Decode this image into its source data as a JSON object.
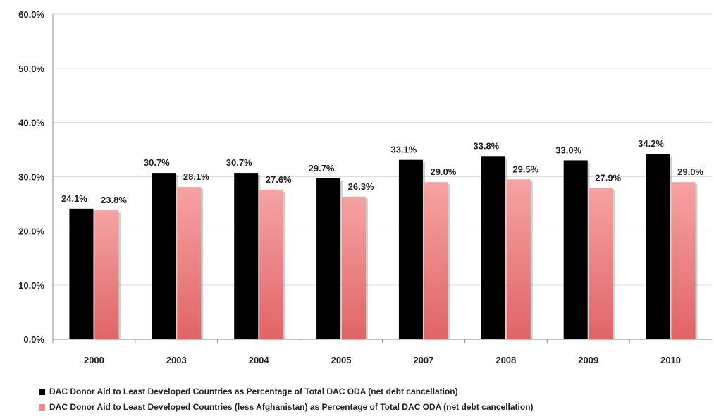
{
  "chart_data": {
    "type": "bar",
    "categories": [
      "2000",
      "2003",
      "2004",
      "2005",
      "2007",
      "2008",
      "2009",
      "2010"
    ],
    "series": [
      {
        "name": "DAC Donor Aid to Least Developed Countries as Percentage of Total DAC ODA (net debt cancellation)",
        "values": [
          24.1,
          30.7,
          30.7,
          29.7,
          33.1,
          33.8,
          33.0,
          34.2
        ],
        "labels": [
          "24.1%",
          "30.7%",
          "30.7%",
          "29.7%",
          "33.1%",
          "33.8%",
          "33.0%",
          "34.2%"
        ],
        "color": "#000000"
      },
      {
        "name": "DAC Donor Aid to Least Developed Countries (less Afghanistan) as Percentage of Total DAC ODA (net debt cancellation)",
        "values": [
          23.8,
          28.1,
          27.6,
          26.3,
          29.0,
          29.5,
          27.9,
          29.0
        ],
        "labels": [
          "23.8%",
          "28.1%",
          "27.6%",
          "26.3%",
          "29.0%",
          "29.5%",
          "27.9%",
          "29.0%"
        ],
        "color": "#e8777a"
      }
    ],
    "yticks": [
      "0.0%",
      "10.0%",
      "20.0%",
      "30.0%",
      "40.0%",
      "50.0%",
      "60.0%"
    ],
    "ylim": [
      0,
      60
    ],
    "grid": true,
    "legend_position": "bottom",
    "title": "",
    "xlabel": "",
    "ylabel": ""
  }
}
